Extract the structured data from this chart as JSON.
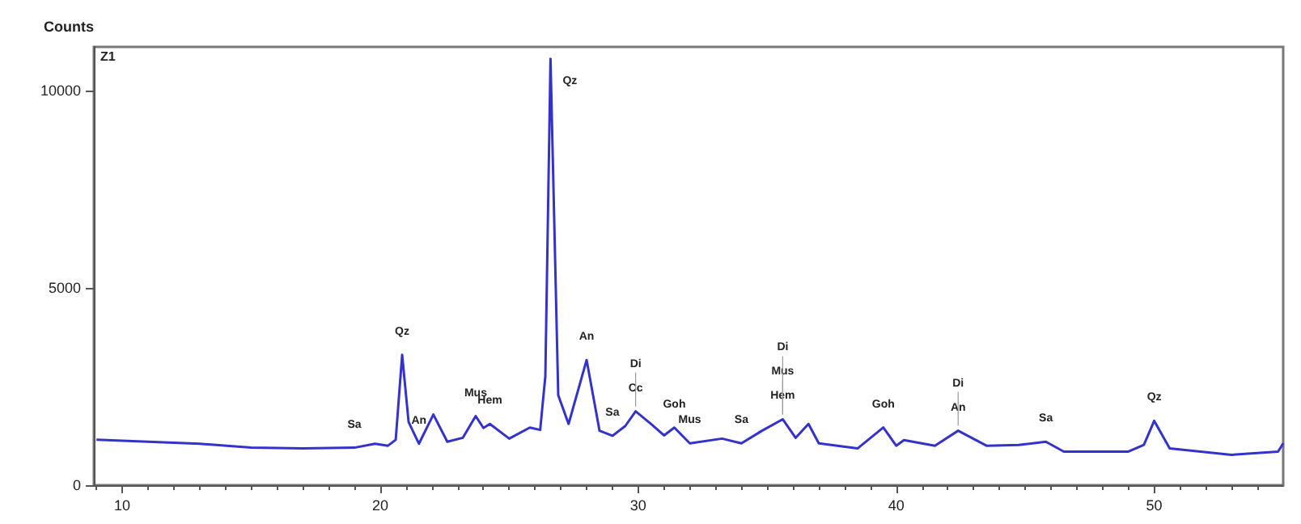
{
  "chart_data": {
    "type": "line",
    "ylabel": "Counts",
    "x": [
      9,
      11,
      13,
      15,
      17,
      19,
      19.8,
      20.3,
      20.6,
      20.85,
      21.1,
      21.5,
      22.06,
      22.6,
      23.2,
      23.7,
      24.0,
      24.25,
      25,
      25.8,
      26.2,
      26.4,
      26.6,
      26.9,
      27.3,
      28.0,
      28.5,
      29,
      29.5,
      29.9,
      30.5,
      31.0,
      31.4,
      32,
      33.25,
      34,
      34.8,
      35.6,
      36.1,
      36.6,
      37,
      38.5,
      39.5,
      40.0,
      40.3,
      41.5,
      42.4,
      43.5,
      44.75,
      45.8,
      46.5,
      49,
      49.6,
      50.0,
      50.6,
      53,
      54.8,
      55
    ],
    "series": [
      {
        "color": "#3333cc",
        "values": [
          1150,
          1100,
          1050,
          950,
          930,
          950,
          1050,
          1000,
          1150,
          3300,
          1600,
          1050,
          1790,
          1100,
          1200,
          1750,
          1450,
          1550,
          1180,
          1460,
          1400,
          2760,
          10800,
          2280,
          1550,
          3170,
          1380,
          1250,
          1500,
          1870,
          1550,
          1260,
          1460,
          1060,
          1180,
          1060,
          1380,
          1670,
          1200,
          1550,
          1060,
          930,
          1460,
          1000,
          1140,
          1000,
          1380,
          1000,
          1020,
          1100,
          850,
          850,
          1020,
          1630,
          930,
          770,
          850,
          1060
        ]
      }
    ],
    "xlim": [
      8.9,
      55
    ],
    "ylim": [
      0,
      11100
    ],
    "xticks": [
      10,
      20,
      30,
      40,
      50
    ],
    "yticks": [
      0,
      5000,
      10000
    ],
    "grid": false,
    "marker": "none",
    "line_style": "solid",
    "annotations": [
      "Z1",
      {
        "text": "Sa",
        "x": 19,
        "y": 950
      },
      {
        "text": "Qz",
        "x": 20.85,
        "y": 3300
      },
      {
        "text": "An",
        "x": 21.5,
        "y": 1050
      },
      {
        "text": "Hem",
        "x": 24.25,
        "y": 1550
      },
      {
        "text": "Mus",
        "x": 23.7,
        "y": 1750
      },
      {
        "text": "Qz",
        "x": 26.6,
        "y": 10800
      },
      {
        "text": "Sa",
        "x": 29,
        "y": 1250
      },
      {
        "text": "An",
        "x": 28.0,
        "y": 3170
      },
      {
        "text": "Cc",
        "x": 29.9,
        "y": 1870
      },
      {
        "text": "Di",
        "x": 29.9,
        "y": 1870
      },
      {
        "text": "Goh",
        "x": 31.4,
        "y": 1460
      },
      {
        "text": "Mus",
        "x": 32,
        "y": 1060
      },
      {
        "text": "Sa",
        "x": 34,
        "y": 1060
      },
      {
        "text": "Hem",
        "x": 35.6,
        "y": 1670
      },
      {
        "text": "Mus",
        "x": 35.6,
        "y": 1670
      },
      {
        "text": "Di",
        "x": 35.6,
        "y": 1670
      },
      {
        "text": "Goh",
        "x": 39.5,
        "y": 1460
      },
      {
        "text": "An",
        "x": 42.4,
        "y": 1380
      },
      {
        "text": "Di",
        "x": 42.4,
        "y": 1380
      },
      {
        "text": "Sa",
        "x": 45.8,
        "y": 1100
      },
      {
        "text": "Qz",
        "x": 50.0,
        "y": 1630
      }
    ]
  }
}
